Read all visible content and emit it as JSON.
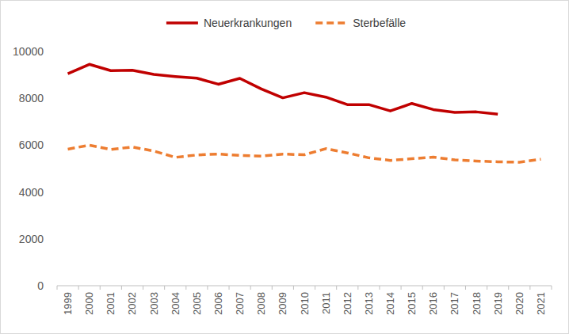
{
  "chart_data": {
    "type": "line",
    "categories": [
      "1999",
      "2000",
      "2001",
      "2002",
      "2003",
      "2004",
      "2005",
      "2006",
      "2007",
      "2008",
      "2009",
      "2010",
      "2011",
      "2012",
      "2013",
      "2014",
      "2015",
      "2016",
      "2017",
      "2018",
      "2019",
      "2020",
      "2021"
    ],
    "series": [
      {
        "name": "Neuerkrankungen",
        "color": "#c00000",
        "line_style": "solid",
        "values": [
          9050,
          9450,
          9180,
          9200,
          9020,
          8930,
          8860,
          8600,
          8850,
          8400,
          8020,
          8240,
          8050,
          7730,
          7730,
          7460,
          7780,
          7520,
          7400,
          7420,
          7320,
          null,
          null
        ]
      },
      {
        "name": "Sterbefälle",
        "color": "#ed7d31",
        "line_style": "dashed",
        "values": [
          5830,
          6000,
          5820,
          5920,
          5750,
          5480,
          5580,
          5620,
          5560,
          5530,
          5620,
          5590,
          5850,
          5670,
          5460,
          5350,
          5420,
          5490,
          5370,
          5320,
          5290,
          5270,
          5400
        ]
      }
    ],
    "ylim": [
      0,
      10000
    ],
    "yticks": [
      0,
      2000,
      4000,
      6000,
      8000,
      10000
    ],
    "grid": false,
    "legend": "top"
  }
}
